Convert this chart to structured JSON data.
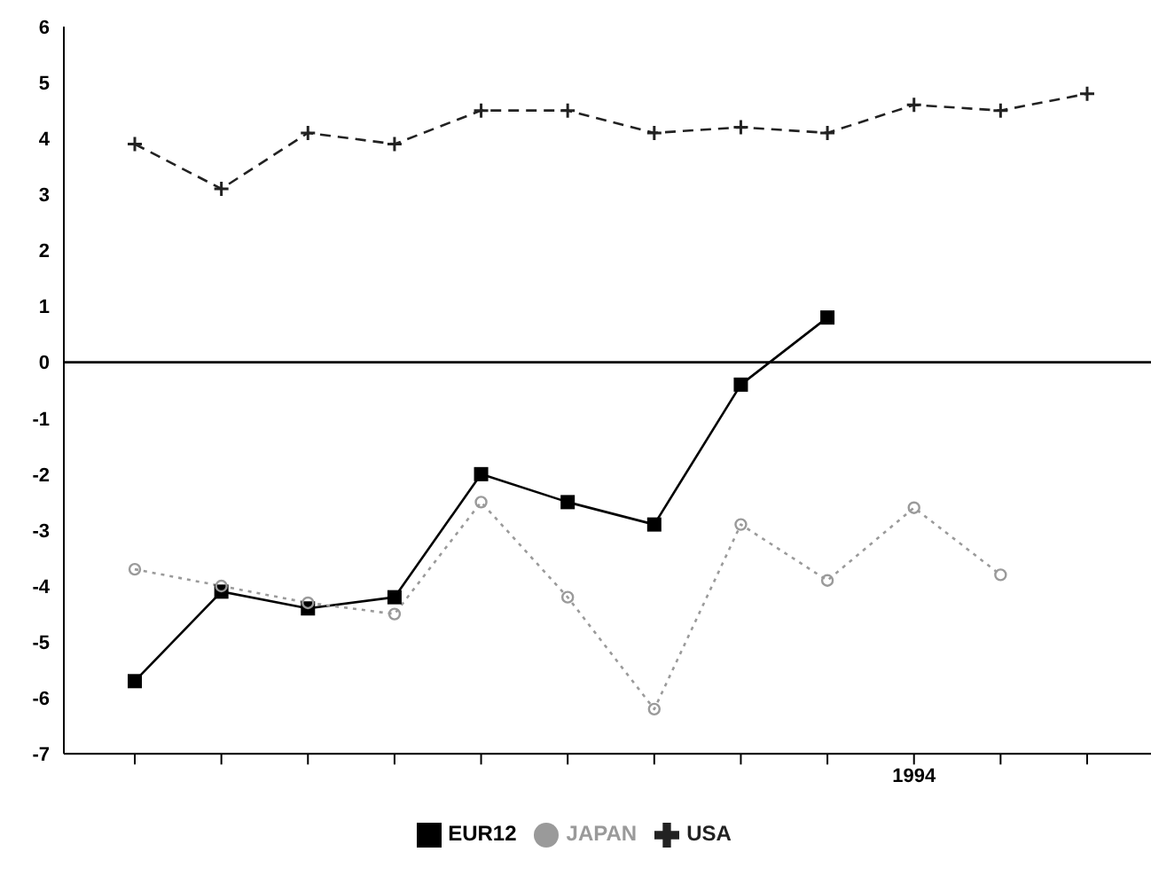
{
  "chart_data": {
    "type": "line",
    "categories": [
      null,
      null,
      null,
      null,
      null,
      null,
      null,
      null,
      null,
      "1994",
      null,
      null
    ],
    "series": [
      {
        "name": "EUR12",
        "color": "#000000",
        "marker": "square",
        "line_style": "solid",
        "values": [
          -5.7,
          -4.1,
          -4.4,
          -4.2,
          -2.0,
          -2.5,
          -2.9,
          -0.4,
          0.8,
          null,
          null,
          null
        ]
      },
      {
        "name": "USA",
        "color": "#222222",
        "marker": "cross",
        "line_style": "dashed",
        "values": [
          3.9,
          3.1,
          4.1,
          3.9,
          4.5,
          4.5,
          4.1,
          4.2,
          4.1,
          4.6,
          4.5,
          4.8
        ]
      },
      {
        "name": "JAPAN",
        "color": "#9a9a9a",
        "marker": "circle",
        "line_style": "dotted",
        "values": [
          -3.7,
          -4.0,
          -4.3,
          -4.5,
          -2.5,
          -4.2,
          -6.2,
          -2.9,
          -3.9,
          -2.6,
          -3.8,
          null
        ]
      }
    ],
    "ylim": [
      -7,
      6
    ],
    "yticks": [
      -7,
      -6,
      -5,
      -4,
      -3,
      -2,
      -1,
      0,
      1,
      2,
      3,
      4,
      5,
      6
    ],
    "ref_lines": [
      {
        "axis": "y",
        "value": 0,
        "color": "#000000"
      }
    ],
    "grid": false,
    "legend": "bottom"
  }
}
